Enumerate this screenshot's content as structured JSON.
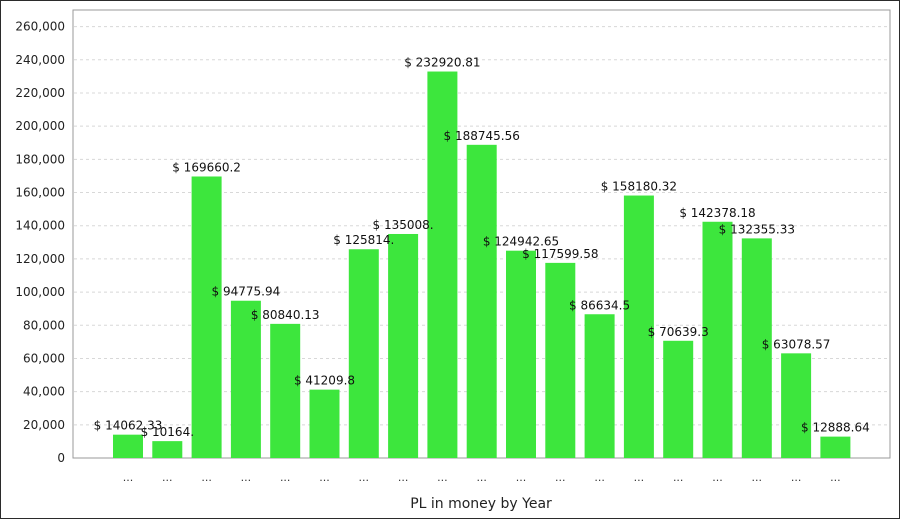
{
  "chart_data": {
    "type": "bar",
    "title": "",
    "xlabel": "PL in money by Year",
    "ylabel": "",
    "ylim": [
      0,
      270000
    ],
    "y_ticks": [
      0,
      20000,
      40000,
      60000,
      80000,
      100000,
      120000,
      140000,
      160000,
      180000,
      200000,
      220000,
      240000,
      260000
    ],
    "y_tick_labels": [
      "0",
      "20,000",
      "40,000",
      "60,000",
      "80,000",
      "100,000",
      "120,000",
      "140,000",
      "160,000",
      "180,000",
      "200,000",
      "220,000",
      "240,000",
      "260,000"
    ],
    "categories": [
      "...",
      "...",
      "...",
      "...",
      "...",
      "...",
      "...",
      "...",
      "...",
      "...",
      "...",
      "...",
      "...",
      "...",
      "...",
      "...",
      "...",
      "...",
      "..."
    ],
    "values": [
      14062.33,
      10164.0,
      169660.2,
      94775.94,
      80840.13,
      41209.8,
      125814.0,
      135008.0,
      232920.81,
      188745.56,
      124942.65,
      117599.58,
      86634.5,
      158180.32,
      70639.3,
      142378.18,
      132355.33,
      63078.57,
      12888.64
    ],
    "data_labels": [
      "$ 14062.33",
      "$ 10164.",
      "$ 169660.2",
      "$ 94775.94",
      "$ 80840.13",
      "$ 41209.8",
      "$ 125814.",
      "$ 135008.",
      "$ 232920.81",
      "$ 188745.56",
      "$ 124942.65",
      "$ 117599.58",
      "$ 86634.5",
      "$ 158180.32",
      "$ 70639.3",
      "$ 142378.18",
      "$ 132355.33",
      "$ 63078.57",
      "$ 12888.64"
    ],
    "bar_color": "#3de63d",
    "grid": true,
    "legend": "none"
  }
}
